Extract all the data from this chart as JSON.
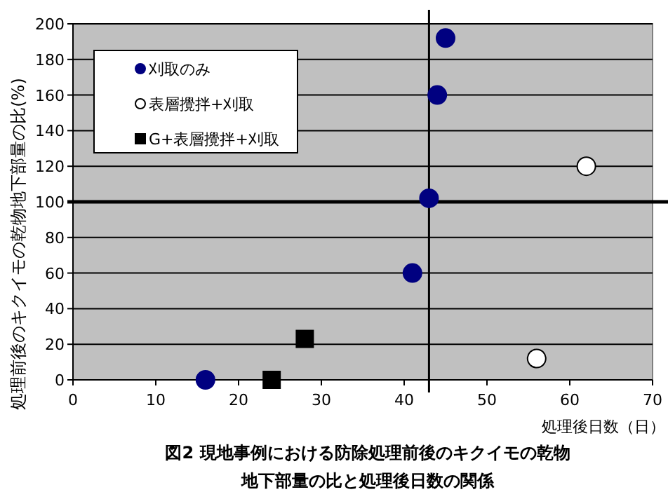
{
  "chart_data": {
    "type": "scatter",
    "title": "図2 現地事例における防除処理前後のキクイモの乾物地下部量の比と処理後日数の関係",
    "xlabel": "処理後日数（日）",
    "ylabel": "処理前後のキクイモの乾物地下部量の比(%)",
    "xlim": [
      0,
      70
    ],
    "ylim": [
      0,
      200
    ],
    "xticks": [
      0,
      10,
      20,
      30,
      40,
      50,
      60,
      70
    ],
    "yticks": [
      0,
      20,
      40,
      60,
      80,
      100,
      120,
      140,
      160,
      180,
      200
    ],
    "grid": "y",
    "legend": "top left",
    "ref_lines": [
      {
        "axis": "x",
        "value": 43
      },
      {
        "axis": "y",
        "value": 100
      }
    ],
    "series": [
      {
        "name": "刈取のみ",
        "color": "#000080",
        "marker": "circle",
        "x": [
          16,
          41,
          43,
          44,
          45
        ],
        "values": [
          0,
          60,
          102,
          160,
          192
        ]
      },
      {
        "name": "表層攪拌+刈取",
        "color": "#ffffff",
        "marker": "circle",
        "x": [
          56,
          62
        ],
        "values": [
          12,
          120
        ]
      },
      {
        "name": "G+表層攪拌+刈取",
        "color": "#000000",
        "marker": "square",
        "x": [
          24,
          28
        ],
        "values": [
          0,
          23
        ]
      }
    ]
  }
}
